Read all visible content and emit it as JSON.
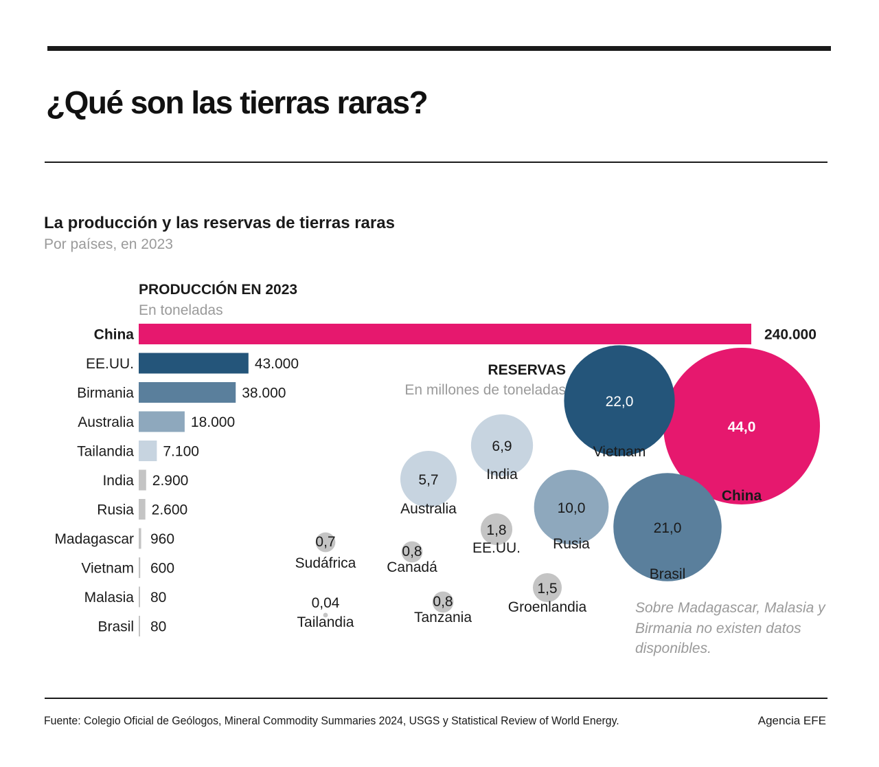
{
  "header": {
    "title": "¿Qué son las tierras raras?",
    "chart_title": "La producción y las reservas de tierras raras",
    "chart_subtitle": "Por países, en 2023"
  },
  "production": {
    "title": "PRODUCCIÓN EN 2023",
    "unit": "En toneladas"
  },
  "reserves": {
    "title": "RESERVAS",
    "unit": "En millones de toneladas"
  },
  "note": "Sobre Madagascar, Malasia y Birmania no existen datos disponibles.",
  "footer": {
    "source": "Fuente: Colegio Oficial de Geólogos, Mineral Commodity Summaries 2024, USGS y Statistical Review of World Energy.",
    "credit": "Agencia EFE"
  },
  "colors": {
    "china": "#e6186e",
    "dark_blue": "#24557a",
    "mid_blue": "#5a7f9c",
    "light_blue": "#8ea8bd",
    "pale_blue": "#c7d4e0",
    "gray": "#c4c4c4",
    "text_dark": "#1a1a1a",
    "text_gray": "#9a9a9a"
  },
  "chart_data": [
    {
      "type": "bar",
      "orientation": "horizontal",
      "title": "PRODUCCIÓN EN 2023",
      "unit": "En toneladas",
      "categories": [
        "China",
        "EE.UU.",
        "Birmania",
        "Australia",
        "Tailandia",
        "India",
        "Rusia",
        "Madagascar",
        "Vietnam",
        "Malasia",
        "Brasil"
      ],
      "values": [
        240000,
        43000,
        38000,
        18000,
        7100,
        2900,
        2600,
        960,
        600,
        80,
        80
      ],
      "value_labels": [
        "240.000",
        "43.000",
        "38.000",
        "18.000",
        "7.100",
        "2.900",
        "2.600",
        "960",
        "600",
        "80",
        "80"
      ],
      "highlight": [
        "China"
      ],
      "colors": [
        "#e6186e",
        "#24557a",
        "#5a7f9c",
        "#8ea8bd",
        "#c7d4e0",
        "#c4c4c4",
        "#c4c4c4",
        "#c4c4c4",
        "#c4c4c4",
        "#c4c4c4",
        "#c4c4c4"
      ],
      "xlim": [
        0,
        240000
      ]
    },
    {
      "type": "bubble",
      "title": "RESERVAS",
      "unit": "En millones de toneladas",
      "countries": [
        "China",
        "Vietnam",
        "Brasil",
        "Rusia",
        "India",
        "Australia",
        "EE.UU.",
        "Groenlandia",
        "Sudáfrica",
        "Canadá",
        "Tanzania",
        "Tailandia"
      ],
      "values": [
        44.0,
        22.0,
        21.0,
        10.0,
        6.9,
        5.7,
        1.8,
        1.5,
        0.7,
        0.8,
        0.8,
        0.04
      ],
      "value_labels": [
        "44,0",
        "22,0",
        "21,0",
        "10,0",
        "6,9",
        "5,7",
        "1,8",
        "1,5",
        "0,7",
        "0,8",
        "0,8",
        "0,04"
      ],
      "highlight": [
        "China"
      ],
      "colors": [
        "#e6186e",
        "#24557a",
        "#5a7f9c",
        "#8ea8bd",
        "#c7d4e0",
        "#c7d4e0",
        "#c4c4c4",
        "#c4c4c4",
        "#c4c4c4",
        "#c4c4c4",
        "#c4c4c4",
        "#c4c4c4"
      ]
    }
  ]
}
